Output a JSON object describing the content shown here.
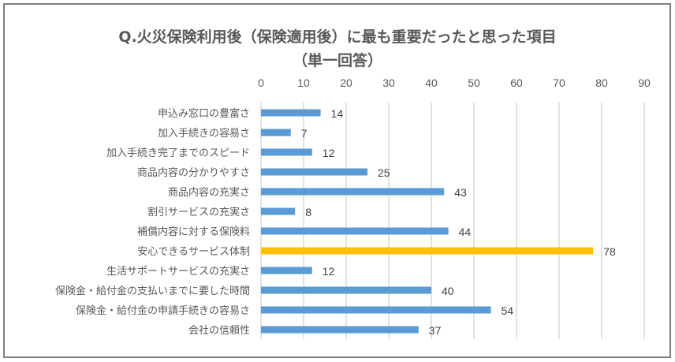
{
  "chart_data": {
    "type": "bar",
    "orientation": "horizontal",
    "title": "Q.火災保険利用後（保険適用後）に最も重要だったと思った項目",
    "subtitle": "（単一回答）",
    "xlabel": "",
    "ylabel": "",
    "xlim": [
      0,
      90
    ],
    "ticks": [
      "0",
      "10",
      "20",
      "30",
      "40",
      "50",
      "60",
      "70",
      "80",
      "90"
    ],
    "tick_values": [
      0,
      10,
      20,
      30,
      40,
      50,
      60,
      70,
      80,
      90
    ],
    "grid": true,
    "axis_position": "top",
    "categories": [
      "申込み窓口の豊富さ",
      "加入手続きの容易さ",
      "加入手続き完了までのスピード",
      "商品内容の分かりやすさ",
      "商品内容の充実さ",
      "割引サービスの充実さ",
      "補償内容に対する保険料",
      "安心できるサービス体制",
      "生活サポートサービスの充実さ",
      "保険金・給付金の支払いまでに要した時間",
      "保険金・給付金の申請手続きの容易さ",
      "会社の信頼性"
    ],
    "values": [
      14,
      7,
      12,
      25,
      43,
      8,
      44,
      78,
      12,
      40,
      54,
      37
    ],
    "data_labels": [
      "14",
      "7",
      "12",
      "25",
      "43",
      "8",
      "44",
      "78",
      "12",
      "40",
      "54",
      "37"
    ],
    "highlight_index": 7,
    "colors": {
      "bar": "#5b9bd5",
      "highlight": "#ffc000",
      "grid": "#d9d9d9",
      "text": "#595959"
    }
  }
}
